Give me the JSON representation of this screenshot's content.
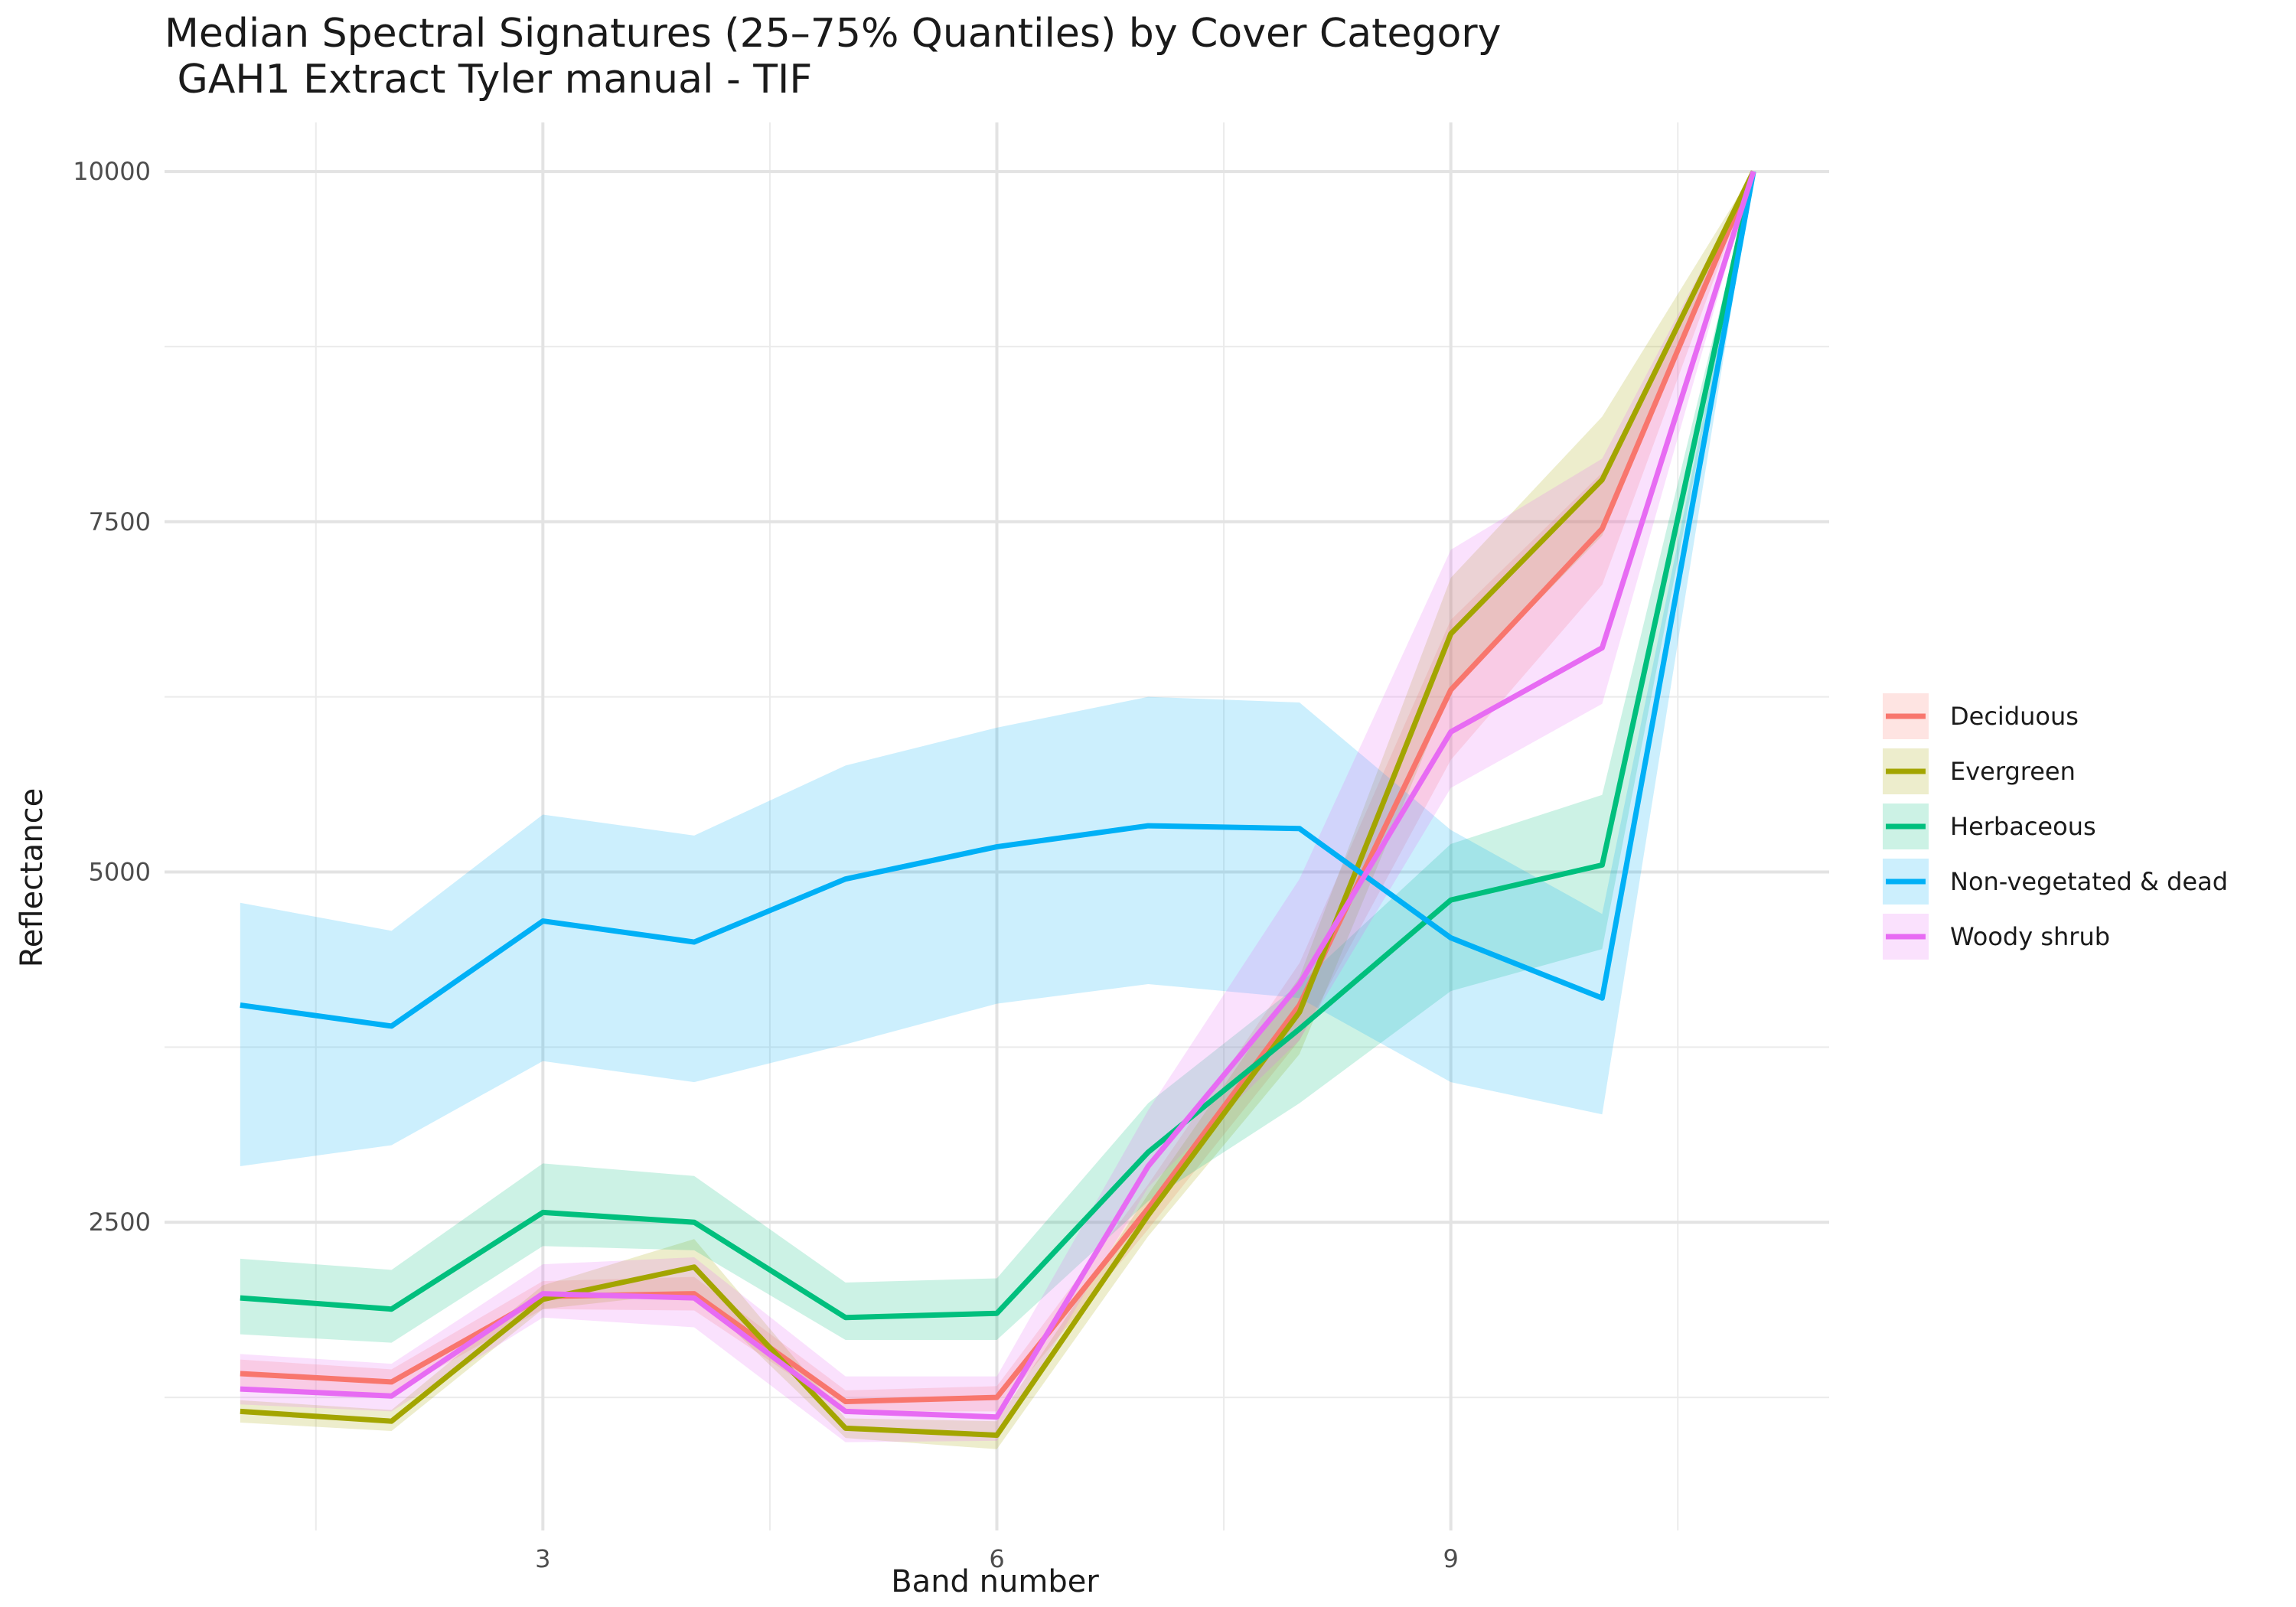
{
  "chart_data": {
    "type": "line",
    "title": "Median Spectral Signatures (25–75% Quantiles) by Cover Category",
    "subtitle": " GAH1 Extract Tyler manual - TIF",
    "xlabel": "Band number",
    "ylabel": "Reflectance",
    "xlim": [
      0.5,
      11.5
    ],
    "ylim": [
      300,
      10350
    ],
    "x_ticks": [
      3,
      6,
      9
    ],
    "x_minor": [
      1.5,
      4.5,
      7.5,
      10.5
    ],
    "y_ticks": [
      2500,
      5000,
      7500,
      10000
    ],
    "y_minor": [
      1250,
      3750,
      6250,
      8750
    ],
    "grid": true,
    "legend_position": "right",
    "x": [
      1,
      2,
      3,
      4,
      5,
      6,
      7,
      8,
      9,
      10,
      11
    ],
    "series": [
      {
        "name": "Deciduous",
        "color": "#F8766D",
        "median": [
          1420,
          1360,
          1970,
          1990,
          1220,
          1250,
          2600,
          4050,
          6300,
          7450,
          10000
        ],
        "q25": [
          1330,
          1270,
          1880,
          1870,
          1150,
          1150,
          2450,
          3800,
          5800,
          7050,
          10000
        ],
        "q75": [
          1520,
          1450,
          2080,
          2110,
          1300,
          1330,
          2770,
          4350,
          6800,
          7850,
          10000
        ]
      },
      {
        "name": "Evergreen",
        "color": "#A3A500",
        "median": [
          1150,
          1080,
          1950,
          2180,
          1030,
          980,
          2550,
          4000,
          6700,
          7800,
          10000
        ],
        "q25": [
          1070,
          1010,
          1880,
          2000,
          960,
          880,
          2400,
          3700,
          6300,
          7400,
          10000
        ],
        "q75": [
          1230,
          1160,
          2050,
          2380,
          1100,
          1080,
          2700,
          4250,
          7100,
          8250,
          10000
        ]
      },
      {
        "name": "Herbaceous",
        "color": "#00BF7D",
        "median": [
          1960,
          1880,
          2570,
          2500,
          1820,
          1850,
          3000,
          3880,
          4800,
          5050,
          10000
        ],
        "q25": [
          1700,
          1640,
          2330,
          2300,
          1660,
          1660,
          2650,
          3350,
          4150,
          4450,
          10000
        ],
        "q75": [
          2240,
          2160,
          2920,
          2830,
          2070,
          2100,
          3350,
          4200,
          5200,
          5550,
          10000
        ]
      },
      {
        "name": "Non-vegetated & dead",
        "color": "#00B0F6",
        "median": [
          4050,
          3900,
          4650,
          4500,
          4950,
          5180,
          5330,
          5310,
          4530,
          4100,
          10000
        ],
        "q25": [
          2900,
          3050,
          3650,
          3500,
          3770,
          4060,
          4200,
          4100,
          3500,
          3270,
          10000
        ],
        "q75": [
          4780,
          4580,
          5410,
          5260,
          5760,
          6030,
          6250,
          6210,
          5300,
          4700,
          10000
        ]
      },
      {
        "name": "Woody shrub",
        "color": "#E76BF3",
        "median": [
          1310,
          1260,
          1990,
          1960,
          1150,
          1110,
          2900,
          4200,
          6000,
          6600,
          10000
        ],
        "q25": [
          1200,
          1150,
          1820,
          1750,
          930,
          940,
          2750,
          3800,
          5600,
          6200,
          10000
        ],
        "q75": [
          1560,
          1490,
          2200,
          2250,
          1400,
          1400,
          3300,
          4950,
          7300,
          7950,
          10000
        ]
      }
    ]
  }
}
